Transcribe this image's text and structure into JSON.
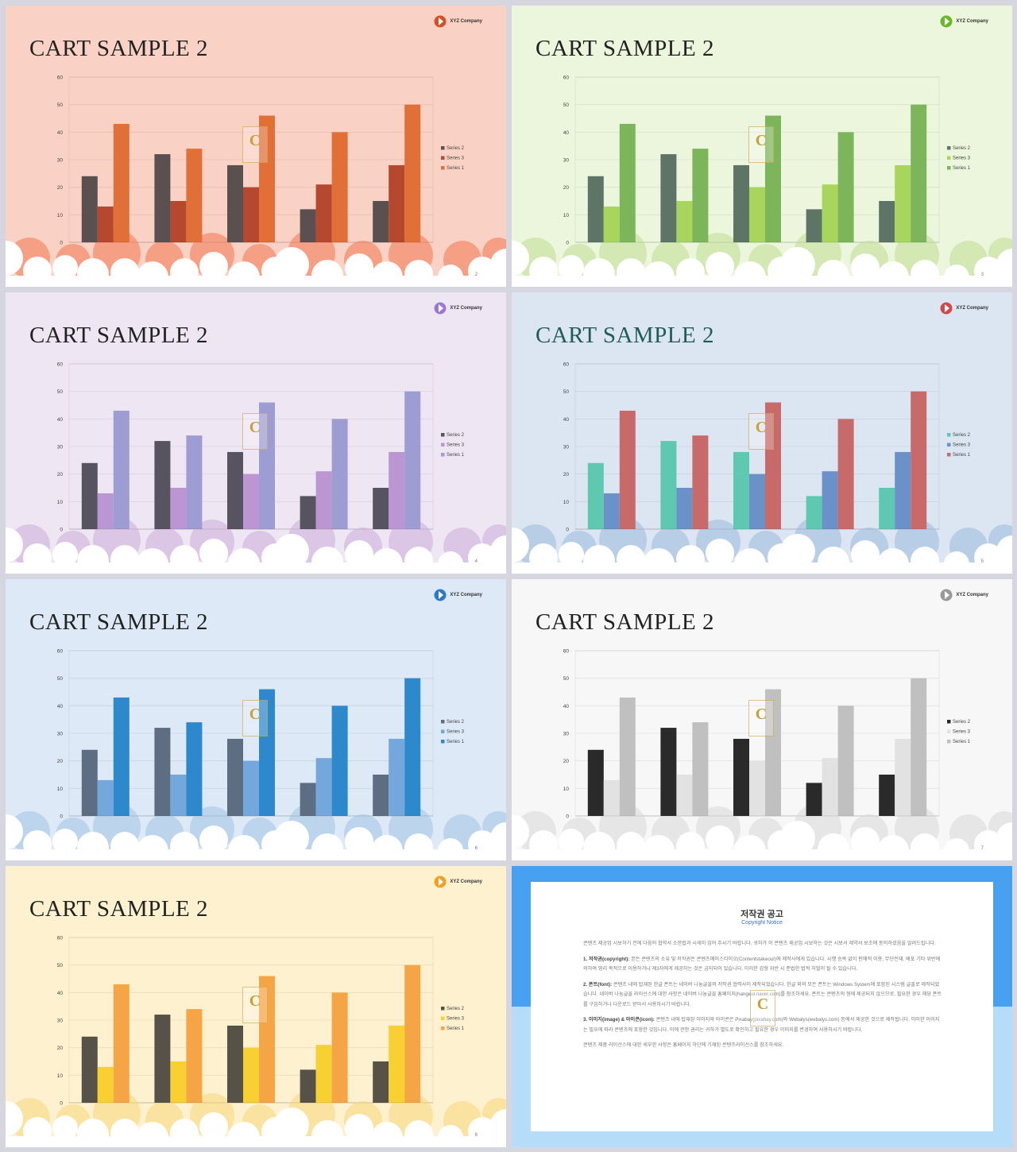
{
  "chart_data": {
    "type": "bar",
    "categories": [
      "",
      "",
      "",
      "",
      ""
    ],
    "series": [
      {
        "name": "Series 2",
        "values": [
          24,
          32,
          28,
          12,
          15
        ]
      },
      {
        "name": "Series 3",
        "values": [
          13,
          15,
          20,
          21,
          28
        ]
      },
      {
        "name": "Series 1",
        "values": [
          43,
          34,
          46,
          40,
          50
        ]
      }
    ],
    "ylim": [
      0,
      60
    ],
    "yticks": [
      0,
      10,
      20,
      30,
      40,
      50,
      60
    ],
    "legend": "right",
    "grid": true
  },
  "slides": [
    {
      "title": "CART SAMPLE 2",
      "company": "XYZ Company",
      "page": "2",
      "bg": "#fad1c5",
      "title_color": "#222222",
      "colors": [
        "#5a5050",
        "#b5482e",
        "#e07038"
      ],
      "cloud": "#f5a085",
      "logo_color": "#d0502a"
    },
    {
      "title": "CART SAMPLE 2",
      "company": "XYZ Company",
      "page": "3",
      "bg": "#ecf6dc",
      "title_color": "#222222",
      "colors": [
        "#5e7466",
        "#a8d65c",
        "#7db55a"
      ],
      "cloud": "#d4e8b4",
      "logo_color": "#6ab82a"
    },
    {
      "title": "CART SAMPLE 2",
      "company": "XYZ Company",
      "page": "4",
      "bg": "#efe6f3",
      "title_color": "#222222",
      "colors": [
        "#575361",
        "#bb96d2",
        "#9d9cd3"
      ],
      "cloud": "#dcc6e6",
      "logo_color": "#9a7ad0"
    },
    {
      "title": "CART SAMPLE 2",
      "company": "XYZ Company",
      "page": "5",
      "bg": "#dce6f2",
      "title_color": "#1f5c58",
      "colors": [
        "#5ec9b0",
        "#6a92c8",
        "#c86a6a"
      ],
      "cloud": "#b8cde6",
      "logo_color": "#d04848"
    },
    {
      "title": "CART SAMPLE 2",
      "company": "XYZ Company",
      "page": "6",
      "bg": "#dde9f6",
      "title_color": "#222222",
      "colors": [
        "#5e6e82",
        "#74a8dc",
        "#2e88cc"
      ],
      "cloud": "#bcd4ec",
      "logo_color": "#2a7ac8"
    },
    {
      "title": "CART SAMPLE 2",
      "company": "XYZ Company",
      "page": "7",
      "bg": "#f7f7f7",
      "title_color": "#222222",
      "colors": [
        "#2a2a2a",
        "#e2e2e2",
        "#c0c0c0"
      ],
      "cloud": "#e6e6e6",
      "logo_color": "#999999"
    },
    {
      "title": "CART SAMPLE 2",
      "company": "XYZ Company",
      "page": "8",
      "bg": "#fdf1cf",
      "title_color": "#222222",
      "colors": [
        "#575248",
        "#f8d032",
        "#f5a545"
      ],
      "cloud": "#fae3a0",
      "logo_color": "#f0a020"
    }
  ],
  "watermark": "C",
  "notice": {
    "title": "저작권 공고",
    "subtitle": "Copyright Notice",
    "paragraphs": [
      {
        "head": "",
        "text": "콘텐츠 제공업 시보하기 전에 다음의 협약서 소한법과 시세이 임어 주시기 바랍니다. 귀하가 이 콘텐츠 제공업 시보하는 것은 시보서 제약서 보조에 동의하셨음을 알려드립니다."
      },
      {
        "head": "1. 저작권(copyright):",
        "text": "본든 콘텐츠의 소유 및 저작권은 콘텐츠메이스티이오(Contentstakeout)에 제작사에게 있습니다. 시행 승복 없이 판매적 이용, 무단전재, 배포 기타 위반에 의하여 영리 목적으로 이용하거나 제3자에게 제공하는 것은 금지되어 있습니다. 이러한 감형 위반 시 준법한 법적 처벌이 될 수 있습니다."
      },
      {
        "head": "2. 폰트(font):",
        "text": "콘텐츠 내에 탑재된 한글 폰트는 네이버 나눔글꼴의 저작권 협력사이 제작되었습니다. 한글 외의 모든 폰트는 Windows System에 포함된 시스템 글꼴로 제작되었습니다. 네이버 나눔글꼴 라이선스에 대한 사항은 네이버 나눔글꼴 홈페이지(hangeul.naver.com)를 참조하세요. 폰트는 콘텐츠의 형에 제공되지 않으므로, 필요한 경우 해당 폰트를 구입하거나 다운로드 받아서 사용하시기 바랍니다."
      },
      {
        "head": "3. 이미지(image) & 아이콘(icon):",
        "text": "콘텐츠 내에 탑재된 이미지와 아이콘은 Pixabay(pixabay.com)와 Webalys(webalys.com) 등에서 제공한 것으로 제작됩니다. 이러한 이미지는 필요에 따라 콘텐츠에 포함한 것입니다. 이에 관한 권리는 귀하가 별도로 확인하고 필요한 경우 이미지를 변경하여 사용하시기 바랍니다."
      },
      {
        "head": "",
        "text": "콘텐츠 제품 라이선스에 대한 세부한 사항은 홈페이지 하단에 기재된 콘텐츠라이선스를 참조하세요."
      }
    ]
  }
}
